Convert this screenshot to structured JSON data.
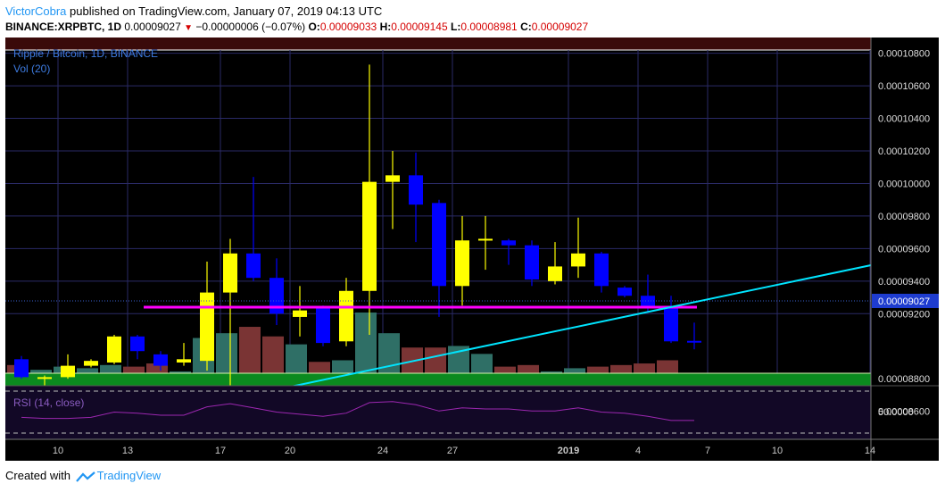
{
  "header": {
    "author": "VictorCobra",
    "published_text": "published on TradingView.com, January 07, 2019 04:13 UTC",
    "symbol_line": "BINANCE:XRPBTC, 1D",
    "last_price": "0.00009027",
    "change": "−0.00000006 (−0.07%)",
    "o_label": "O:",
    "o_value": "0.00009033",
    "h_label": "H:",
    "h_value": "0.00009145",
    "l_label": "L:",
    "l_value": "0.00008981",
    "c_label": "C:",
    "c_value": "0.00009027"
  },
  "legend": {
    "title": "Ripple / Bitcoin, 1D, BINANCE",
    "volume": "Vol (20)",
    "rsi": "RSI (14, close)"
  },
  "footer": {
    "created_with": "Created with",
    "brand": "TradingView"
  },
  "colors": {
    "up": "#ffff00",
    "down": "#0000ff",
    "trendline": "#00e5ff",
    "support": "#ff00ff",
    "rsi": "#9c27b0",
    "grid": "#2a2a66"
  },
  "chart_data": {
    "type": "candlestick",
    "title": "Ripple / Bitcoin, 1D, BINANCE",
    "ylim": [
      8.45e-05,
      0.0001082
    ],
    "y_ticks": [
      "0.00010800",
      "0.00010600",
      "0.00010400",
      "0.00010200",
      "0.00010000",
      "0.00009800",
      "0.00009600",
      "0.00009400",
      "0.00009200",
      "0.00008800",
      "0.00008600"
    ],
    "last_price_label": "0.00009027",
    "rsi_tick": "50.0000",
    "x_ticks": [
      {
        "i": 1,
        "label": "10",
        "bold": false
      },
      {
        "i": 4,
        "label": "13",
        "bold": false
      },
      {
        "i": 8,
        "label": "17",
        "bold": false
      },
      {
        "i": 11,
        "label": "20",
        "bold": false
      },
      {
        "i": 15,
        "label": "24",
        "bold": false
      },
      {
        "i": 18,
        "label": "27",
        "bold": false
      },
      {
        "i": 23,
        "label": "2019",
        "bold": true
      },
      {
        "i": 26,
        "label": "4",
        "bold": false
      },
      {
        "i": 29,
        "label": "7",
        "bold": false
      },
      {
        "i": 32,
        "label": "10",
        "bold": false
      },
      {
        "i": 36,
        "label": "14",
        "bold": false
      }
    ],
    "candles": [
      {
        "o": 8920,
        "h": 8940,
        "l": 8800,
        "c": 8810
      },
      {
        "o": 8810,
        "h": 8820,
        "l": 8730,
        "c": 8810
      },
      {
        "o": 8810,
        "h": 8950,
        "l": 8800,
        "c": 8880
      },
      {
        "o": 8880,
        "h": 8920,
        "l": 8870,
        "c": 8910
      },
      {
        "o": 8900,
        "h": 9070,
        "l": 8890,
        "c": 9060
      },
      {
        "o": 9060,
        "h": 9070,
        "l": 8920,
        "c": 8970
      },
      {
        "o": 8950,
        "h": 8970,
        "l": 8850,
        "c": 8880
      },
      {
        "o": 8900,
        "h": 9020,
        "l": 8880,
        "c": 8920
      },
      {
        "o": 8910,
        "h": 9520,
        "l": 8850,
        "c": 9330
      },
      {
        "o": 9330,
        "h": 9660,
        "l": 8600,
        "c": 9570
      },
      {
        "o": 9570,
        "h": 10040,
        "l": 9400,
        "c": 9420
      },
      {
        "o": 9420,
        "h": 9540,
        "l": 9130,
        "c": 9200
      },
      {
        "o": 9180,
        "h": 9370,
        "l": 9060,
        "c": 9220
      },
      {
        "o": 9240,
        "h": 9250,
        "l": 9000,
        "c": 9020
      },
      {
        "o": 9030,
        "h": 9420,
        "l": 9000,
        "c": 9340
      },
      {
        "o": 9340,
        "h": 10730,
        "l": 9070,
        "c": 10010
      },
      {
        "o": 10010,
        "h": 10200,
        "l": 9720,
        "c": 10050
      },
      {
        "o": 10050,
        "h": 10190,
        "l": 9640,
        "c": 9870
      },
      {
        "o": 9880,
        "h": 9900,
        "l": 9180,
        "c": 9370
      },
      {
        "o": 9370,
        "h": 9800,
        "l": 9250,
        "c": 9650
      },
      {
        "o": 9650,
        "h": 9800,
        "l": 9470,
        "c": 9660
      },
      {
        "o": 9650,
        "h": 9660,
        "l": 9500,
        "c": 9620
      },
      {
        "o": 9620,
        "h": 9650,
        "l": 9370,
        "c": 9410
      },
      {
        "o": 9400,
        "h": 9640,
        "l": 9380,
        "c": 9490
      },
      {
        "o": 9490,
        "h": 9790,
        "l": 9420,
        "c": 9570
      },
      {
        "o": 9570,
        "h": 9580,
        "l": 9330,
        "c": 9370
      },
      {
        "o": 9360,
        "h": 9370,
        "l": 9300,
        "c": 9310
      },
      {
        "o": 9310,
        "h": 9440,
        "l": 9210,
        "c": 9240
      },
      {
        "o": 9240,
        "h": 9310,
        "l": 9020,
        "c": 9030
      },
      {
        "o": 9033,
        "h": 9145,
        "l": 8981,
        "c": 9027
      }
    ],
    "volume": [
      13,
      10,
      12,
      11,
      13,
      12,
      14,
      9,
      30,
      33,
      37,
      31,
      26,
      15,
      16,
      46,
      33,
      24,
      24,
      25,
      20,
      12,
      13,
      9,
      11,
      12,
      13,
      14,
      16,
      2
    ],
    "rsi": [
      45,
      44,
      44,
      45,
      50,
      49,
      47,
      47,
      55,
      58,
      54,
      50,
      48,
      46,
      49,
      59,
      60,
      57,
      51,
      54,
      53,
      53,
      51,
      51,
      54,
      50,
      49,
      46,
      42,
      42
    ]
  }
}
